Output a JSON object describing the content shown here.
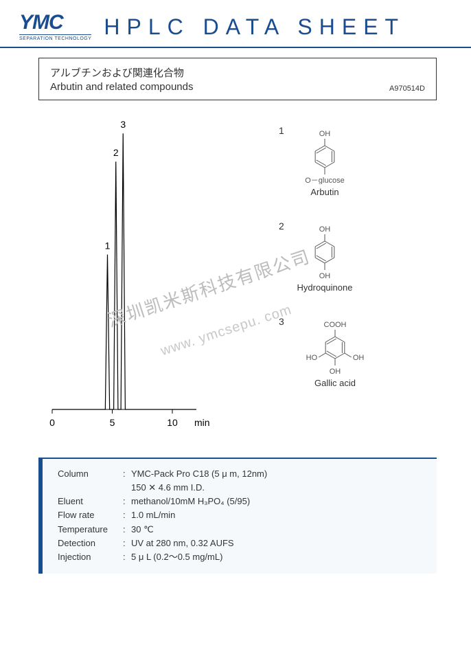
{
  "header": {
    "logo_main": "YMC",
    "logo_sub": "SEPARATION TECHNOLOGY",
    "title": "HPLC DATA SHEET"
  },
  "title_box": {
    "jp": "アルブチンおよび関連化合物",
    "en": "Arbutin and related compounds",
    "doc_id": "A970514D"
  },
  "chromatogram": {
    "peaks": [
      {
        "label": "1",
        "rt_min": 4.6,
        "height": 0.55
      },
      {
        "label": "2",
        "rt_min": 5.3,
        "height": 0.88
      },
      {
        "label": "3",
        "rt_min": 5.9,
        "height": 0.98
      }
    ],
    "x_ticks": [
      0,
      5,
      10
    ],
    "x_unit": "min",
    "xlim": [
      0,
      12
    ],
    "baseline_color": "#000000",
    "peak_color": "#000000",
    "label_fontsize": 14,
    "tick_fontsize": 14
  },
  "compounds": [
    {
      "num": "1",
      "name": "Arbutin",
      "top_label": "OH",
      "bottom_label": "O－glucose"
    },
    {
      "num": "2",
      "name": "Hydroquinone",
      "top_label": "OH",
      "bottom_label": "OH"
    },
    {
      "num": "3",
      "name": "Gallic acid",
      "top_label": "COOH",
      "left_label": "HO",
      "right_label": "OH",
      "bottom_label": "OH"
    }
  ],
  "params": {
    "rows": [
      {
        "label": "Column",
        "value": "YMC-Pack Pro C18 (5 μ m, 12nm)"
      },
      {
        "label": "",
        "value": "150 ✕ 4.6 mm I.D."
      },
      {
        "label": "Eluent",
        "value": "methanol/10mM H₃PO₄ (5/95)"
      },
      {
        "label": "Flow rate",
        "value": "1.0 mL/min"
      },
      {
        "label": "Temperature",
        "value": "30 ℃"
      },
      {
        "label": "Detection",
        "value": "UV at 280 nm, 0.32 AUFS"
      },
      {
        "label": "Injection",
        "value": "5 μ L (0.2～0.5 mg/mL)"
      }
    ]
  },
  "watermark": {
    "line1": "深圳凯米斯科技有限公司",
    "line2": "www. ymcsepu. com"
  },
  "colors": {
    "brand": "#1a4d8f",
    "text": "#333333",
    "background": "#ffffff",
    "param_bg": "#f6f9fc",
    "watermark": "#bcbcbc"
  }
}
